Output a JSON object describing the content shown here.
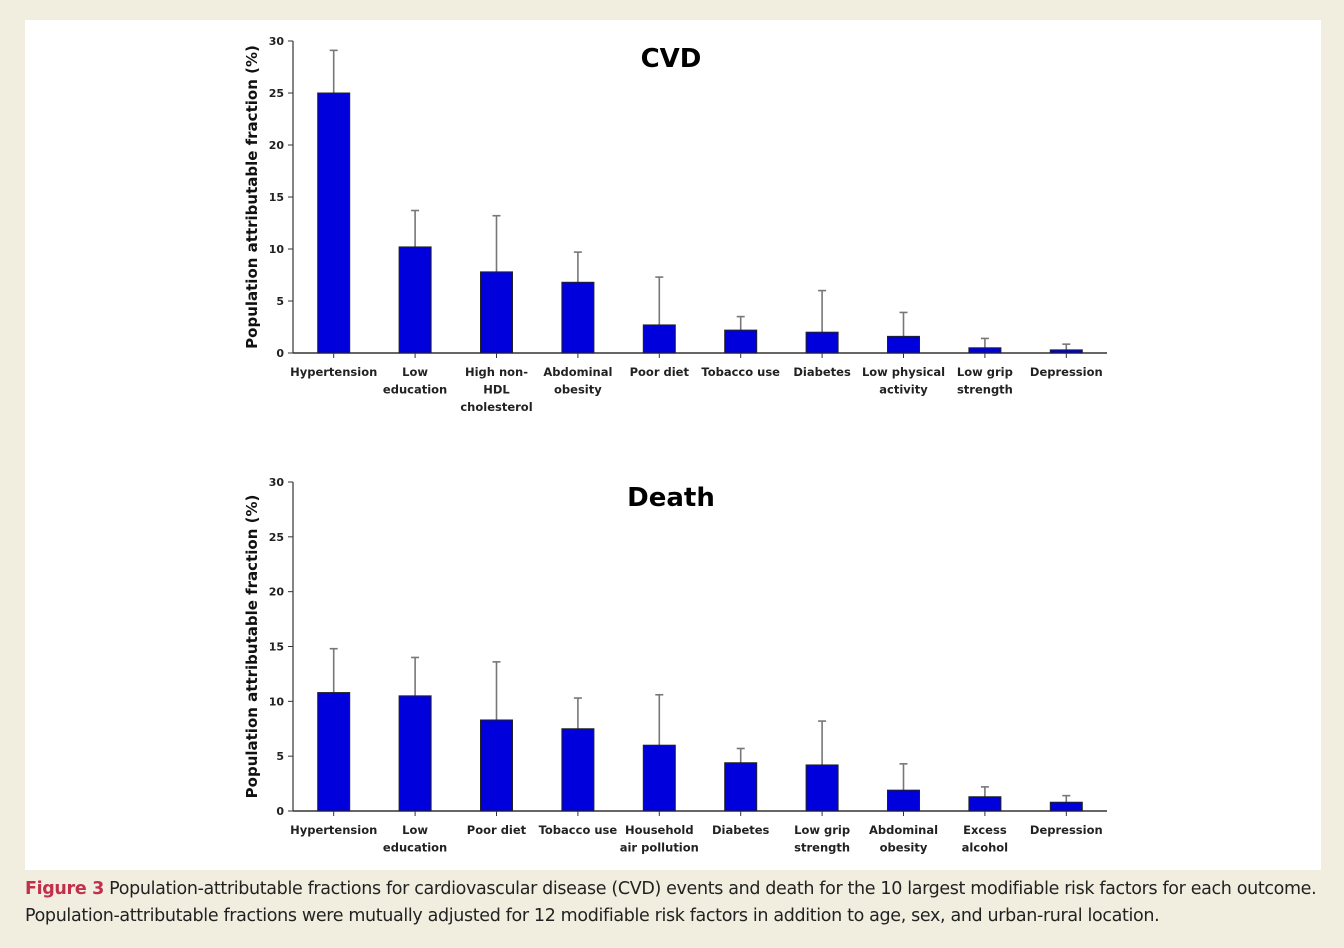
{
  "colors": {
    "bar": "#0000dd",
    "error_bar": "#777777",
    "figure_label": "#c0304a",
    "background": "#f1eee0"
  },
  "chart_data": [
    {
      "type": "bar",
      "title": "CVD",
      "xlabel": "",
      "ylabel": "Population attributable fraction (%)",
      "ylim": [
        0,
        30
      ],
      "yticks": [
        0,
        5,
        10,
        15,
        20,
        25,
        30
      ],
      "grid": false,
      "categories": [
        "Hypertension",
        "Low education",
        "High non-HDL cholesterol",
        "Abdominal obesity",
        "Poor diet",
        "Tobacco use",
        "Diabetes",
        "Low physical activity",
        "Low grip strength",
        "Depression"
      ],
      "category_lines": [
        [
          "Hypertension"
        ],
        [
          "Low",
          "education"
        ],
        [
          "High non-",
          "HDL",
          "cholesterol"
        ],
        [
          "Abdominal",
          "obesity"
        ],
        [
          "Poor diet"
        ],
        [
          "Tobacco use"
        ],
        [
          "Diabetes"
        ],
        [
          "Low physical",
          "activity"
        ],
        [
          "Low grip",
          "strength"
        ],
        [
          "Depression"
        ]
      ],
      "values": [
        25.0,
        10.2,
        7.8,
        6.8,
        2.7,
        2.2,
        2.0,
        1.6,
        0.5,
        0.3
      ],
      "upper_ci": [
        29.1,
        13.7,
        13.2,
        9.7,
        7.3,
        3.5,
        6.0,
        3.9,
        1.4,
        0.85
      ]
    },
    {
      "type": "bar",
      "title": "Death",
      "xlabel": "",
      "ylabel": "Population attributable fraction (%)",
      "ylim": [
        0,
        30
      ],
      "yticks": [
        0,
        5,
        10,
        15,
        20,
        25,
        30
      ],
      "grid": false,
      "categories": [
        "Hypertension",
        "Low education",
        "Poor diet",
        "Tobacco use",
        "Household air pollution",
        "Diabetes",
        "Low grip strength",
        "Abdominal obesity",
        "Excess alcohol",
        "Depression"
      ],
      "category_lines": [
        [
          "Hypertension"
        ],
        [
          "Low",
          "education"
        ],
        [
          "Poor diet"
        ],
        [
          "Tobacco use"
        ],
        [
          "Household",
          "air pollution"
        ],
        [
          "Diabetes"
        ],
        [
          "Low grip",
          "strength"
        ],
        [
          "Abdominal",
          "obesity"
        ],
        [
          "Excess",
          "alcohol"
        ],
        [
          "Depression"
        ]
      ],
      "values": [
        10.8,
        10.5,
        8.3,
        7.5,
        6.0,
        4.4,
        4.2,
        1.9,
        1.3,
        0.8
      ],
      "upper_ci": [
        14.8,
        14.0,
        13.6,
        10.3,
        10.6,
        5.7,
        8.2,
        4.3,
        2.2,
        1.4
      ]
    }
  ],
  "caption": {
    "figure_label": "Figure 3",
    "text": " Population-attributable fractions for cardiovascular disease (CVD) events and death for the 10 largest modifiable risk factors for each outcome. Population-attributable fractions were mutually adjusted for 12 modifiable risk factors in addition to age, sex, and urban-rural location."
  }
}
